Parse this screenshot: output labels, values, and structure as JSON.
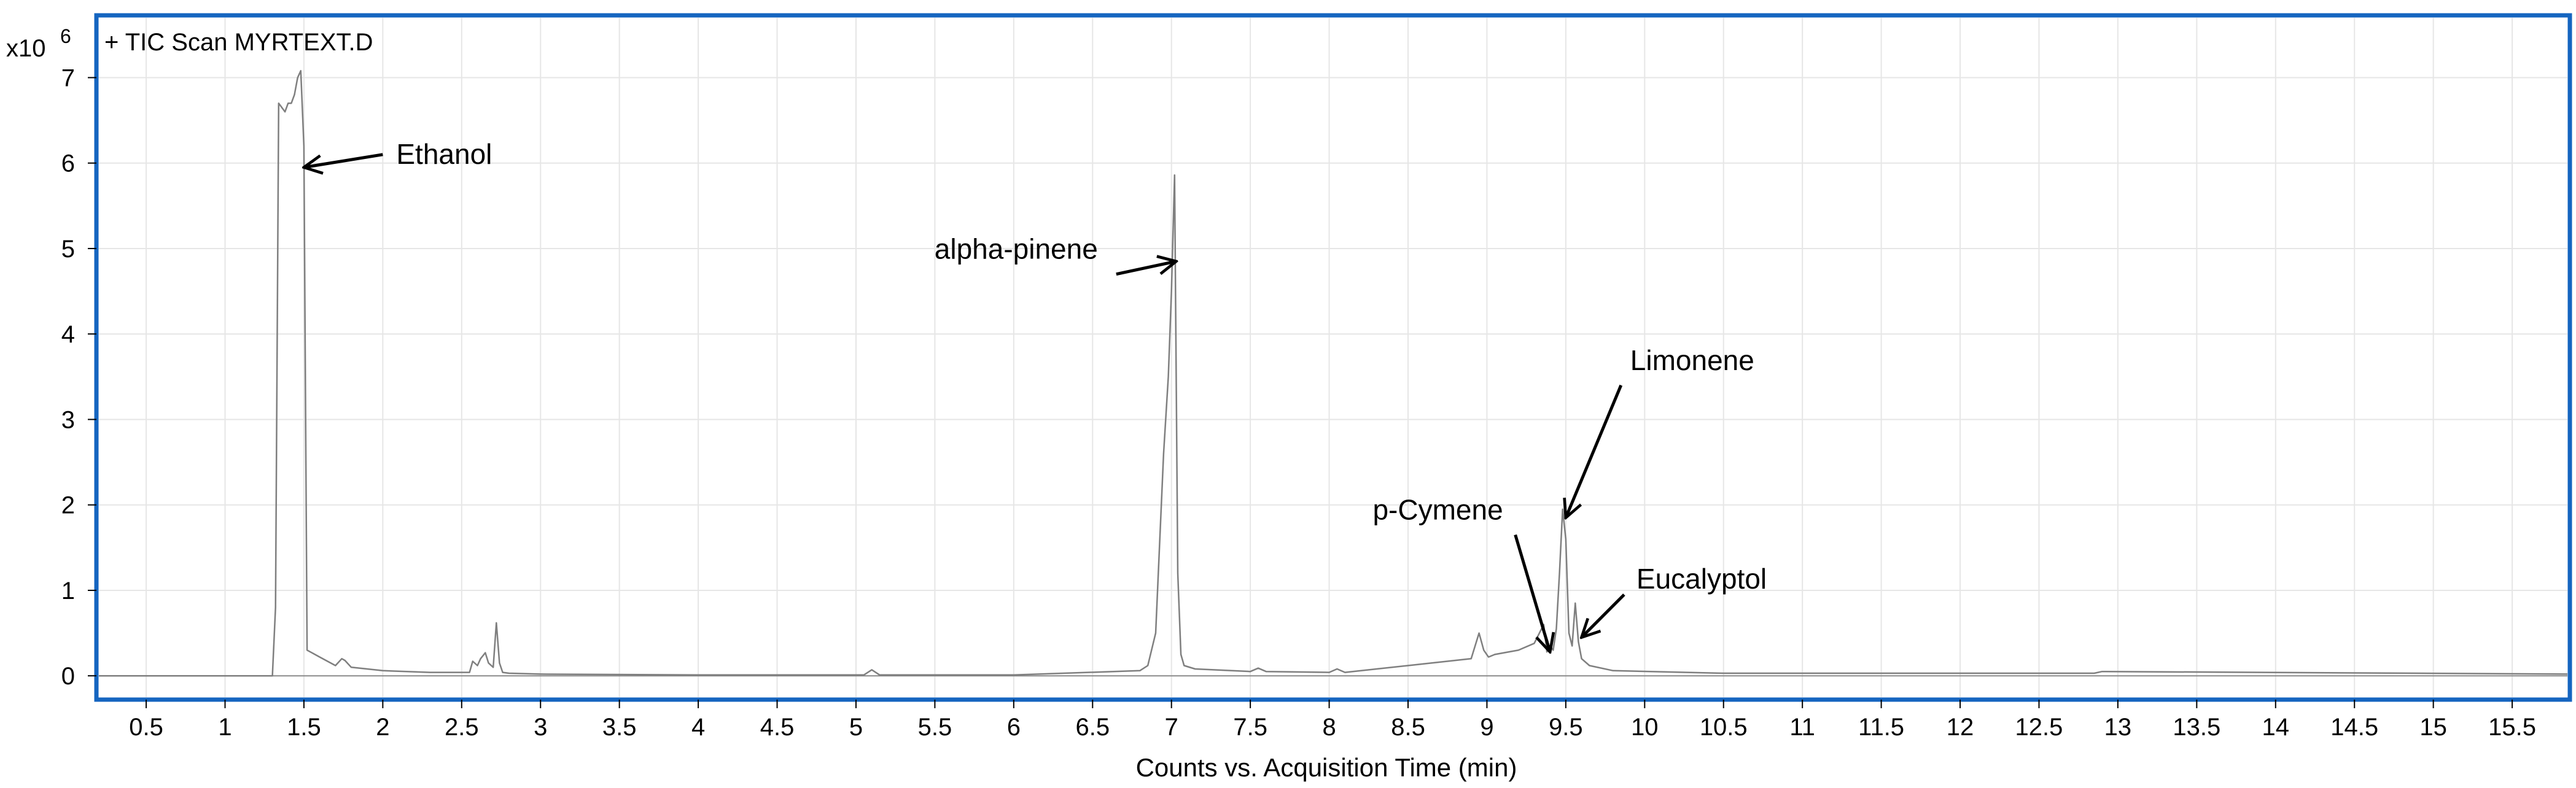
{
  "chart_data": {
    "type": "line",
    "title": "+ TIC Scan MYRTEXT.D",
    "y_multiplier": "x10",
    "y_exponent": "6",
    "xlabel": "Counts vs. Acquisition Time (min)",
    "xlim": [
      0.2,
      15.85
    ],
    "ylim": [
      -0.25,
      7.7
    ],
    "x_ticks": [
      "0.5",
      "1",
      "1.5",
      "2",
      "2.5",
      "3",
      "3.5",
      "4",
      "4.5",
      "5",
      "5.5",
      "6",
      "6.5",
      "7",
      "7.5",
      "8",
      "8.5",
      "9",
      "9.5",
      "10",
      "10.5",
      "11",
      "11.5",
      "12",
      "12.5",
      "13",
      "13.5",
      "14",
      "14.5",
      "15",
      "15.5"
    ],
    "y_ticks": [
      "0",
      "1",
      "2",
      "3",
      "4",
      "5",
      "6",
      "7"
    ],
    "grid": true,
    "series": [
      {
        "name": "TIC Scan MYRTEXT.D",
        "x": [
          0.2,
          1.3,
          1.32,
          1.34,
          1.36,
          1.38,
          1.4,
          1.42,
          1.44,
          1.46,
          1.48,
          1.5,
          1.52,
          1.6,
          1.7,
          1.74,
          1.76,
          1.8,
          2.0,
          2.3,
          2.55,
          2.57,
          2.6,
          2.62,
          2.65,
          2.67,
          2.7,
          2.72,
          2.74,
          2.76,
          2.8,
          3.0,
          4.0,
          5.05,
          5.1,
          5.15,
          6.0,
          6.8,
          6.85,
          6.9,
          6.95,
          6.98,
          7.0,
          7.02,
          7.04,
          7.06,
          7.08,
          7.15,
          7.5,
          7.55,
          7.6,
          8.0,
          8.05,
          8.1,
          8.5,
          8.9,
          8.95,
          8.98,
          9.01,
          9.05,
          9.2,
          9.3,
          9.36,
          9.38,
          9.4,
          9.42,
          9.44,
          9.46,
          9.48,
          9.5,
          9.52,
          9.54,
          9.56,
          9.58,
          9.6,
          9.65,
          9.8,
          10.5,
          12.85,
          12.9,
          15.85
        ],
        "y": [
          0,
          0,
          0.8,
          6.7,
          6.65,
          6.6,
          6.7,
          6.7,
          6.8,
          7.0,
          7.08,
          6.2,
          0.3,
          0.22,
          0.12,
          0.2,
          0.18,
          0.1,
          0.06,
          0.04,
          0.04,
          0.17,
          0.12,
          0.2,
          0.27,
          0.15,
          0.1,
          0.62,
          0.15,
          0.04,
          0.03,
          0.02,
          0.01,
          0.01,
          0.07,
          0.01,
          0.01,
          0.06,
          0.12,
          0.5,
          2.6,
          3.5,
          4.5,
          5.86,
          1.2,
          0.25,
          0.12,
          0.08,
          0.05,
          0.09,
          0.05,
          0.04,
          0.08,
          0.04,
          0.12,
          0.2,
          0.5,
          0.3,
          0.22,
          0.25,
          0.3,
          0.38,
          0.6,
          0.28,
          0.35,
          0.3,
          0.55,
          1.2,
          1.95,
          1.6,
          0.5,
          0.35,
          0.85,
          0.4,
          0.2,
          0.12,
          0.06,
          0.03,
          0.03,
          0.05,
          0.02
        ]
      }
    ],
    "annotations": [
      {
        "text": "Ethanol",
        "arrow_to": [
          1.5,
          5.95
        ],
        "arrow_from": [
          2.0,
          6.1
        ]
      },
      {
        "text": "alpha-pinene",
        "arrow_to": [
          7.03,
          4.85
        ],
        "arrow_from": [
          6.65,
          4.7
        ]
      },
      {
        "text": "p-Cymene",
        "arrow_to": [
          9.4,
          0.28
        ],
        "arrow_from": [
          9.18,
          1.65
        ]
      },
      {
        "text": "Limonene",
        "arrow_to": [
          9.5,
          1.85
        ],
        "arrow_from": [
          9.85,
          3.4
        ]
      },
      {
        "text": "Eucalyptol",
        "arrow_to": [
          9.6,
          0.45
        ],
        "arrow_from": [
          9.87,
          0.95
        ]
      }
    ],
    "line_color": "#7f7f7f",
    "frame_color": "#1565c0",
    "grid_color": "#e6e6e6"
  }
}
